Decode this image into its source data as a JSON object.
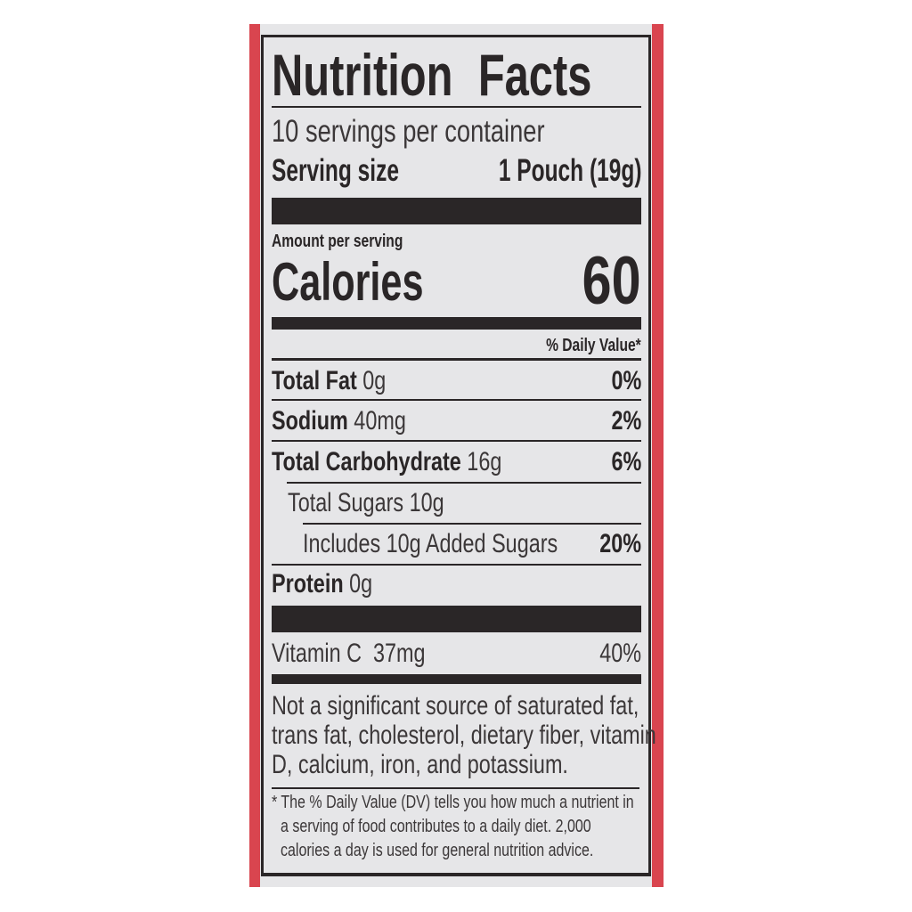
{
  "title": "Nutrition Facts",
  "servings_per_container": "10 servings per container",
  "serving_size": {
    "label": "Serving size",
    "value": "1 Pouch (19g)"
  },
  "amount_per_serving": "Amount per serving",
  "calories": {
    "label": "Calories",
    "value": "60"
  },
  "daily_value_header": "% Daily Value*",
  "nutrients": [
    {
      "name": "Total Fat",
      "amount": "0g",
      "dv": "0%"
    },
    {
      "name": "Sodium",
      "amount": "40mg",
      "dv": "2%"
    },
    {
      "name": "Total Carbohydrate",
      "amount": "16g",
      "dv": "6%"
    },
    {
      "name": "Total Sugars",
      "amount": "10g",
      "dv": ""
    },
    {
      "name": "Includes 10g Added Sugars",
      "amount": "",
      "dv": "20%"
    },
    {
      "name": "Protein",
      "amount": "0g",
      "dv": ""
    }
  ],
  "vitamins": [
    {
      "name": "Vitamin C",
      "amount": "37mg",
      "dv": "40%"
    }
  ],
  "not_significant": [
    "Not a significant source of saturated fat,",
    "trans fat, cholesterol, dietary fiber, vitamin",
    "D, calcium, iron, and potassium."
  ],
  "footnote": [
    "* The % Daily Value (DV) tells you how much a nutrient in",
    "a serving of food contributes to a daily diet. 2,000",
    "calories a day is used for general nutrition advice."
  ],
  "colors": {
    "packaging_red": "#d9454f",
    "ink": "#2a2627",
    "label_background": "#e6e6e8"
  }
}
